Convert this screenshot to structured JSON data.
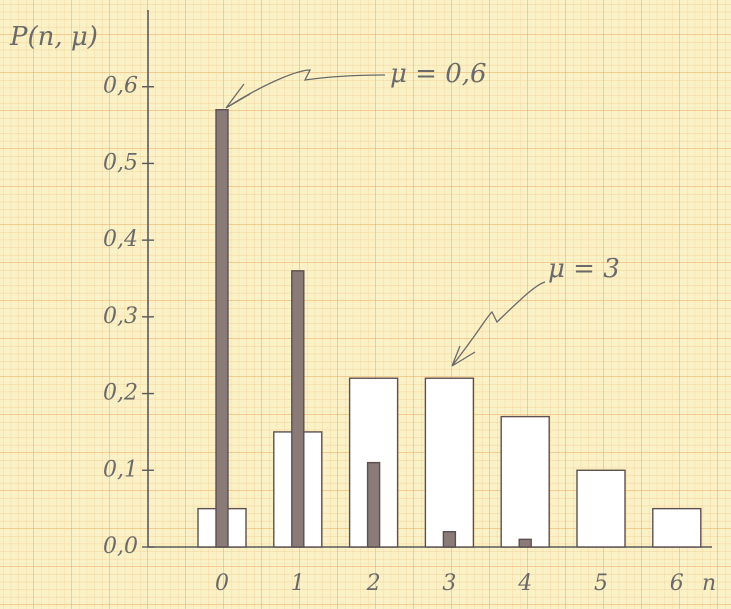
{
  "chart_data": {
    "type": "bar",
    "y_label": "P(n, μ)",
    "x_label": "n",
    "categories": [
      "0",
      "1",
      "2",
      "3",
      "4",
      "5",
      "6"
    ],
    "series": [
      {
        "name": "μ = 0,6",
        "color": "#8a7a78",
        "values": [
          0.57,
          0.36,
          0.11,
          0.02,
          0.01,
          null,
          null
        ]
      },
      {
        "name": "μ = 3",
        "color": "#ffffff",
        "values": [
          0.05,
          0.15,
          0.22,
          0.22,
          0.17,
          0.1,
          0.05
        ]
      }
    ],
    "ylim": [
      0,
      0.7
    ],
    "yticks": [
      {
        "value": 0,
        "label": "0,0"
      },
      {
        "value": 0.1,
        "label": "0,1"
      },
      {
        "value": 0.2,
        "label": "0,2"
      },
      {
        "value": 0.3,
        "label": "0,3"
      },
      {
        "value": 0.4,
        "label": "0,4"
      },
      {
        "value": 0.5,
        "label": "0,5"
      },
      {
        "value": 0.6,
        "label": "0,6"
      }
    ]
  }
}
